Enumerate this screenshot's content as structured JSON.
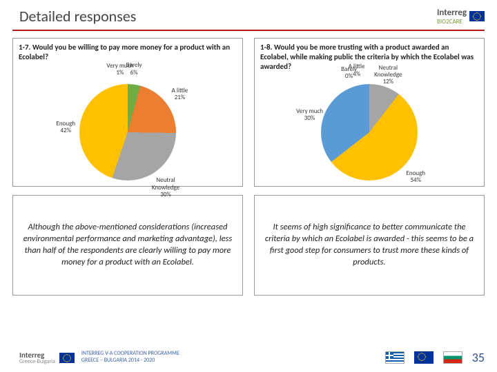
{
  "page": {
    "title": "Detailed responses",
    "page_number": "35"
  },
  "logo": {
    "name": "Interreg",
    "sub": "Greece-Bulgaria",
    "tag": "BIO2CARE"
  },
  "footer": {
    "line1": "INTERREG V-A COOPERATION PROGRAMME",
    "line2": "GREECE – BULGARIA 2014 - 2020"
  },
  "chart_left": {
    "title": "1-7. Would you be willing to pay more money for a product with an Ecolabel?",
    "type": "pie",
    "bg": "#ffffff",
    "border": "#999999",
    "slices": [
      {
        "label": "Very much",
        "pct": 1,
        "color": "#5b9bd5"
      },
      {
        "label": "Barely",
        "pct": 6,
        "color": "#70ad47"
      },
      {
        "label": "A little",
        "pct": 21,
        "color": "#ed7d31"
      },
      {
        "label": "Neutral Knowledge",
        "pct": 30,
        "color": "#a5a5a5"
      },
      {
        "label": "Enough",
        "pct": 42,
        "color": "#ffc000"
      }
    ],
    "label_fontsize": 9,
    "label_color": "#333333"
  },
  "chart_right": {
    "title": "1-8. Would you be more trusting with a product awarded an Ecolabel, while making public the criteria by which the Ecolabel was awarded?",
    "type": "pie",
    "bg": "#ffffff",
    "border": "#999999",
    "slices": [
      {
        "label": "Barely",
        "pct": 0,
        "color": "#70ad47"
      },
      {
        "label": "A little",
        "pct": 4,
        "color": "#ed7d31"
      },
      {
        "label": "Neutral Knowledge",
        "pct": 12,
        "color": "#a5a5a5"
      },
      {
        "label": "Enough",
        "pct": 54,
        "color": "#ffc000"
      },
      {
        "label": "Very much",
        "pct": 30,
        "color": "#5b9bd5"
      }
    ],
    "label_fontsize": 9,
    "label_color": "#333333"
  },
  "text_left": "Although the above-mentioned considerations (increased environmental performance and marketing advantage), less than half of the respondents are clearly willing to pay more money for a product with an Ecolabel.",
  "text_right": "It seems of high significance to better communicate the criteria by which an Ecolabel is awarded - this seems to be a first good step for consumers to trust more these kinds of products."
}
